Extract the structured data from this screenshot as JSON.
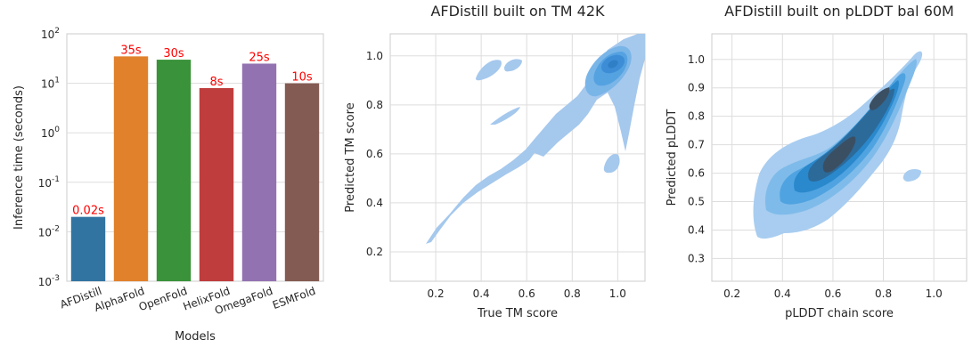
{
  "chart_data": [
    {
      "type": "bar",
      "title": "",
      "xlabel": "Models",
      "ylabel": "Inference time (seconds)",
      "yscale": "log",
      "ylim": [
        0.001,
        100
      ],
      "ytick_labels": [
        "10^-3",
        "10^-2",
        "10^-1",
        "10^0",
        "10^1",
        "10^2"
      ],
      "categories": [
        "AFDistill",
        "AlphaFold",
        "OpenFold",
        "HelixFold",
        "OmegaFold",
        "ESMFold"
      ],
      "values": [
        0.02,
        35,
        30,
        8,
        25,
        10
      ],
      "data_labels": [
        "0.02s",
        "35s",
        "30s",
        "8s",
        "25s",
        "10s"
      ],
      "colors": [
        "#3274a1",
        "#e1812c",
        "#3a923a",
        "#c03d3e",
        "#9372b2",
        "#845b53"
      ],
      "label_color": "#ff0000",
      "grid": true
    },
    {
      "type": "heatmap",
      "title": "AFDistill built on TM 42K",
      "xlabel": "True TM score",
      "ylabel": "Predicted TM score",
      "xlim": [
        0.0,
        1.12
      ],
      "ylim": [
        0.08,
        1.09
      ],
      "xticks": [
        0.2,
        0.4,
        0.6,
        0.8,
        1.0
      ],
      "yticks": [
        0.2,
        0.4,
        0.6,
        0.8,
        1.0
      ],
      "xtick_labels": [
        "0.2",
        "0.4",
        "0.6",
        "0.8",
        "1.0"
      ],
      "ytick_labels": [
        "0.2",
        "0.4",
        "0.6",
        "0.8",
        "1.0"
      ],
      "density_peak": [
        0.98,
        0.96
      ],
      "colors": [
        "#a5c8ed",
        "#7ab5e8",
        "#55a2e1",
        "#3d8dd6"
      ],
      "grid": true
    },
    {
      "type": "heatmap",
      "title": "AFDistill built on pLDDT bal 60M",
      "xlabel": "pLDDT chain score",
      "ylabel": "Predicted pLDDT",
      "xlim": [
        0.12,
        1.13
      ],
      "ylim": [
        0.22,
        1.09
      ],
      "xticks": [
        0.2,
        0.4,
        0.6,
        0.8,
        1.0
      ],
      "yticks": [
        0.3,
        0.4,
        0.5,
        0.6,
        0.7,
        0.8,
        0.9,
        1.0
      ],
      "xtick_labels": [
        "0.2",
        "0.4",
        "0.6",
        "0.8",
        "1.0"
      ],
      "ytick_labels": [
        "0.3",
        "0.4",
        "0.5",
        "0.6",
        "0.7",
        "0.8",
        "0.9",
        "1.0"
      ],
      "density_peaks": [
        [
          0.65,
          0.66
        ],
        [
          0.88,
          0.9
        ]
      ],
      "colors": [
        "#a8cdf0",
        "#7fbbea",
        "#4fa3e0",
        "#2a88cc",
        "#2c6a9a",
        "#3b4f63"
      ],
      "grid": true
    }
  ]
}
